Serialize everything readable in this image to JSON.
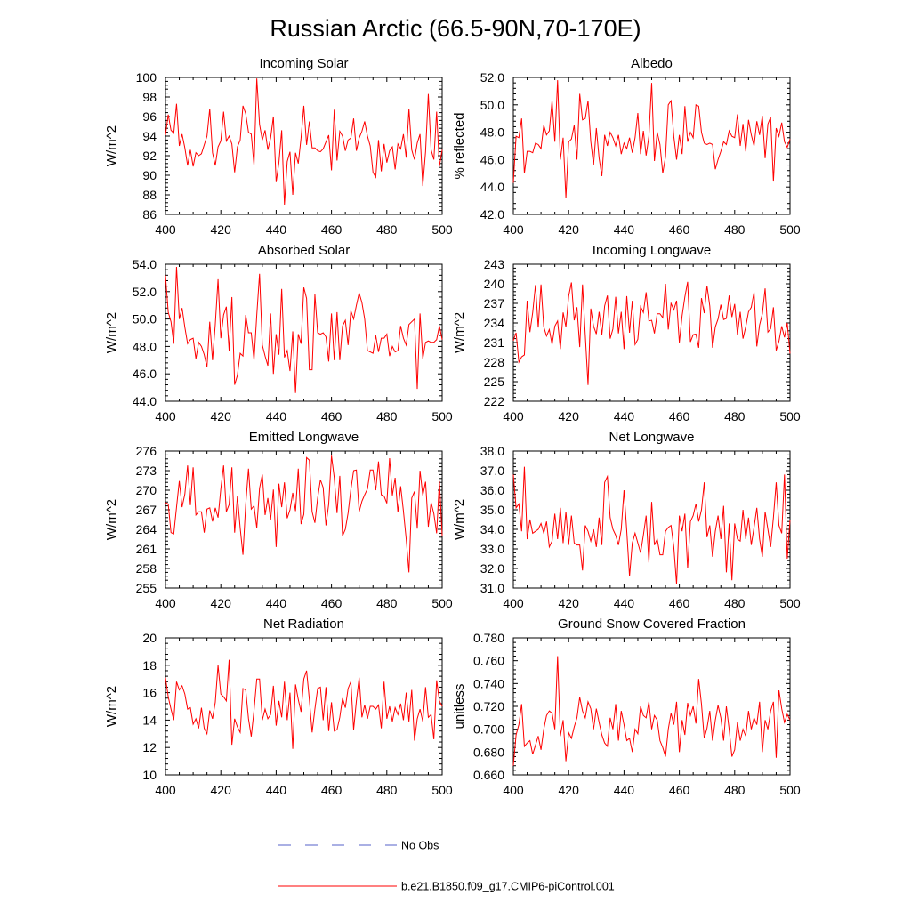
{
  "title": "Russian Arctic (66.5-90N,70-170E)",
  "legend": [
    {
      "label": "No Obs",
      "color": "#5560c8",
      "style": "dashed"
    },
    {
      "label": "b.e21.B1850.f09_g17.CMIP6-piControl.001",
      "color": "#ff0000",
      "style": "solid"
    }
  ],
  "chart_data": [
    {
      "type": "line",
      "title": "Incoming Solar",
      "ylabel": "W/m^2",
      "xlim": [
        400,
        500
      ],
      "ylim": [
        86,
        100
      ],
      "xticks": [
        "400",
        "420",
        "440",
        "460",
        "480",
        "500"
      ],
      "yticks": [
        "86",
        "88",
        "90",
        "92",
        "94",
        "96",
        "98",
        "100"
      ],
      "series": [
        {
          "color": "#ff0000",
          "x_start": 400,
          "x_step": 1,
          "values": [
            94.1,
            96.2,
            94.6,
            94.3,
            97.3,
            93.0,
            94.2,
            92.8,
            91.0,
            92.6,
            90.9,
            92.3,
            92.0,
            92.2,
            93.1,
            94.0,
            96.8,
            92.3,
            91.0,
            92.9,
            93.5,
            96.5,
            93.5,
            94.0,
            93.2,
            90.3,
            92.9,
            93.6,
            97.1,
            96.3,
            94.4,
            94.2,
            91.0,
            99.9,
            95.2,
            93.6,
            94.6,
            92.6,
            93.8,
            96.0,
            89.3,
            91.3,
            94.6,
            87.0,
            91.4,
            92.4,
            88.0,
            92.3,
            91.2,
            93.8,
            97.1,
            93.1,
            95.5,
            92.8,
            92.8,
            92.5,
            92.4,
            92.7,
            93.4,
            94.1,
            90.5,
            96.7,
            91.5,
            94.5,
            94.0,
            92.5,
            93.6,
            93.8,
            95.8,
            92.5,
            93.8,
            94.5,
            95.5,
            94.0,
            93.0,
            90.3,
            89.8,
            93.6,
            90.4,
            93.2,
            91.3,
            92.5,
            92.9,
            90.6,
            93.2,
            92.7,
            94.2,
            91.8,
            96.8,
            92.6,
            91.6,
            93.3,
            94.2,
            88.9,
            92.4,
            98.3,
            92.6,
            91.6,
            96.5,
            90.9,
            92.6
          ]
        }
      ]
    },
    {
      "type": "line",
      "title": "Albedo",
      "ylabel": "% reflected",
      "xlim": [
        400,
        500
      ],
      "ylim": [
        42,
        52
      ],
      "xticks": [
        "400",
        "420",
        "440",
        "460",
        "480",
        "500"
      ],
      "yticks": [
        "42.0",
        "44.0",
        "46.0",
        "48.0",
        "50.0",
        "52.0"
      ],
      "series": [
        {
          "color": "#ff0000",
          "x_start": 400,
          "x_step": 1,
          "values": [
            44.3,
            47.7,
            47.6,
            49.0,
            45.0,
            46.6,
            46.6,
            46.5,
            47.2,
            47.1,
            46.8,
            48.5,
            47.8,
            48.1,
            50.3,
            47.3,
            51.8,
            46.0,
            47.6,
            43.2,
            47.3,
            47.5,
            48.5,
            46.0,
            50.8,
            48.9,
            49.0,
            50.3,
            47.3,
            45.6,
            48.3,
            46.1,
            44.8,
            47.8,
            47.0,
            48.0,
            47.6,
            47.0,
            47.8,
            46.4,
            47.2,
            46.8,
            47.6,
            46.5,
            47.6,
            49.4,
            46.4,
            48.1,
            46.3,
            47.7,
            51.6,
            45.9,
            48.0,
            47.1,
            45.0,
            46.2,
            50.0,
            50.3,
            47.7,
            46.0,
            47.8,
            46.4,
            49.9,
            47.3,
            48.0,
            47.6,
            50.0,
            49.9,
            48.0,
            47.2,
            47.1,
            47.2,
            47.1,
            45.3,
            46.0,
            46.6,
            47.3,
            47.1,
            48.1,
            47.7,
            47.6,
            49.3,
            47.0,
            48.6,
            46.6,
            48.9,
            47.8,
            47.0,
            48.8,
            47.8,
            49.2,
            46.1,
            48.6,
            49.1,
            44.4,
            48.3,
            47.7,
            48.7,
            47.3,
            46.9,
            47.5
          ]
        }
      ]
    },
    {
      "type": "line",
      "title": "Absorbed Solar",
      "ylabel": "W/m^2",
      "xlim": [
        400,
        500
      ],
      "ylim": [
        44,
        54
      ],
      "xticks": [
        "400",
        "420",
        "440",
        "460",
        "480",
        "500"
      ],
      "yticks": [
        "44.0",
        "46.0",
        "48.0",
        "50.0",
        "52.0",
        "54.0"
      ],
      "series": [
        {
          "color": "#ff0000",
          "x_start": 400,
          "x_step": 1,
          "values": [
            53.2,
            50.5,
            49.8,
            48.2,
            53.8,
            50.0,
            50.8,
            49.4,
            48.2,
            48.5,
            48.6,
            47.1,
            48.3,
            48.0,
            47.4,
            46.5,
            49.8,
            47.0,
            49.6,
            52.9,
            48.6,
            50.3,
            50.9,
            47.7,
            51.6,
            45.2,
            45.9,
            47.5,
            47.3,
            50.3,
            49.0,
            49.0,
            47.0,
            50.3,
            53.3,
            48.1,
            47.3,
            46.6,
            50.4,
            46.0,
            48.9,
            47.4,
            52.2,
            47.2,
            47.7,
            46.2,
            49.1,
            44.6,
            48.9,
            48.2,
            52.3,
            51.5,
            46.3,
            46.3,
            51.8,
            49.0,
            48.9,
            49.0,
            48.7,
            46.9,
            50.4,
            47.0,
            50.5,
            47.0,
            49.5,
            49.9,
            48.1,
            50.6,
            50.0,
            51.0,
            51.9,
            51.2,
            50.0,
            47.7,
            47.6,
            47.5,
            48.8,
            47.6,
            48.6,
            48.6,
            48.9,
            47.3,
            48.0,
            47.6,
            47.7,
            49.5,
            48.6,
            48.1,
            49.6,
            49.8,
            50.0,
            44.9,
            50.4,
            47.1,
            48.3,
            48.4,
            48.3,
            48.3,
            48.5,
            49.5,
            48.5
          ]
        }
      ]
    },
    {
      "type": "line",
      "title": "Incoming Longwave",
      "ylabel": "W/m^2",
      "xlim": [
        400,
        500
      ],
      "ylim": [
        222,
        243
      ],
      "xticks": [
        "400",
        "420",
        "440",
        "460",
        "480",
        "500"
      ],
      "yticks": [
        "222",
        "225",
        "228",
        "231",
        "234",
        "237",
        "240",
        "243"
      ],
      "series": [
        {
          "color": "#ff0000",
          "x_start": 400,
          "x_step": 1,
          "values": [
            231.3,
            232.5,
            228.0,
            228.8,
            229.1,
            237.4,
            232.6,
            235.6,
            239.8,
            233.3,
            239.9,
            233.4,
            232.0,
            233.0,
            230.7,
            233.5,
            234.3,
            230.0,
            235.6,
            233.4,
            238.1,
            240.2,
            234.4,
            236.4,
            230.3,
            239.9,
            232.2,
            224.5,
            236.2,
            233.5,
            232.3,
            235.7,
            232.2,
            236.6,
            238.2,
            231.6,
            233.1,
            238.0,
            232.4,
            235.7,
            230.0,
            238.1,
            232.5,
            237.4,
            230.7,
            231.5,
            236.5,
            235.6,
            238.7,
            234.3,
            234.4,
            232.4,
            235.4,
            235.4,
            234.8,
            240.0,
            233.0,
            237.0,
            236.0,
            237.4,
            231.0,
            235.1,
            238.0,
            240.3,
            231.1,
            232.2,
            232.3,
            230.2,
            237.8,
            235.5,
            239.7,
            236.6,
            230.2,
            233.4,
            234.6,
            236.8,
            234.5,
            234.7,
            238.2,
            234.9,
            236.9,
            232.2,
            235.7,
            231.6,
            233.4,
            235.7,
            236.4,
            238.7,
            230.4,
            233.7,
            235.4,
            239.3,
            232.6,
            233.1,
            236.4,
            229.8,
            231.2,
            233.5,
            231.8,
            234.0,
            229.3
          ]
        }
      ]
    },
    {
      "type": "line",
      "title": "Emitted Longwave",
      "ylabel": "W/m^2",
      "xlim": [
        400,
        500
      ],
      "ylim": [
        255,
        276
      ],
      "xticks": [
        "400",
        "420",
        "440",
        "460",
        "480",
        "500"
      ],
      "yticks": [
        "255",
        "258",
        "261",
        "264",
        "267",
        "270",
        "273",
        "276"
      ],
      "series": [
        {
          "color": "#ff0000",
          "x_start": 400,
          "x_step": 1,
          "values": [
            268.1,
            267.9,
            263.5,
            263.3,
            267.4,
            271.4,
            267.4,
            269.4,
            273.8,
            267.7,
            273.5,
            266.2,
            266.7,
            266.7,
            263.5,
            267.1,
            267.3,
            265.2,
            267.3,
            265.8,
            270.2,
            273.8,
            266.7,
            267.8,
            273.5,
            263.5,
            269.1,
            264.2,
            260.1,
            267.8,
            273.3,
            267.1,
            267.6,
            264.2,
            270.3,
            272.4,
            266.2,
            268.8,
            265.5,
            270.1,
            261.3,
            271.0,
            267.4,
            271.2,
            265.7,
            267.0,
            269.6,
            266.8,
            273.3,
            264.8,
            266.3,
            275.0,
            274.6,
            266.7,
            265.0,
            268.8,
            271.6,
            270.4,
            264.6,
            267.9,
            275.3,
            271.9,
            266.5,
            272.2,
            263.0,
            264.0,
            266.5,
            270.1,
            273.0,
            273.1,
            266.7,
            268.3,
            269.3,
            270.2,
            273.1,
            273.1,
            270.0,
            274.4,
            269.3,
            269.1,
            268.0,
            274.9,
            269.2,
            271.9,
            266.6,
            270.6,
            266.8,
            262.5,
            257.4,
            268.8,
            269.8,
            264.1,
            273.0,
            269.2,
            271.3,
            264.4,
            268.1,
            266.4,
            263.4,
            271.4,
            263.0
          ]
        }
      ]
    },
    {
      "type": "line",
      "title": "Net Longwave",
      "ylabel": "W/m^2",
      "xlim": [
        400,
        500
      ],
      "ylim": [
        31,
        38
      ],
      "xticks": [
        "400",
        "420",
        "440",
        "460",
        "480",
        "500"
      ],
      "yticks": [
        "31.0",
        "32.0",
        "33.0",
        "34.0",
        "35.0",
        "36.0",
        "37.0",
        "38.0"
      ],
      "series": [
        {
          "color": "#ff0000",
          "x_start": 400,
          "x_step": 1,
          "values": [
            36.8,
            35.1,
            35.3,
            33.9,
            37.2,
            33.5,
            34.5,
            33.8,
            33.9,
            34.0,
            34.3,
            33.8,
            34.4,
            33.1,
            33.4,
            34.8,
            33.5,
            35.1,
            33.3,
            34.9,
            33.2,
            34.7,
            33.3,
            33.2,
            33.2,
            31.9,
            34.2,
            33.9,
            33.4,
            34.0,
            33.1,
            34.6,
            33.2,
            36.4,
            36.7,
            34.6,
            34.0,
            33.7,
            33.2,
            34.0,
            36.0,
            33.9,
            31.6,
            33.3,
            33.8,
            33.3,
            32.8,
            33.7,
            34.7,
            32.3,
            35.4,
            33.2,
            33.5,
            32.7,
            32.7,
            33.9,
            34.1,
            34.2,
            33.1,
            31.2,
            34.7,
            33.9,
            34.8,
            32.0,
            34.4,
            34.7,
            35.3,
            34.4,
            35.0,
            36.4,
            33.6,
            34.2,
            32.6,
            33.9,
            34.7,
            33.5,
            35.2,
            31.8,
            34.3,
            31.4,
            34.3,
            33.5,
            33.4,
            35.0,
            33.5,
            34.6,
            33.2,
            34.1,
            35.1,
            33.5,
            32.6,
            34.9,
            34.0,
            33.1,
            34.6,
            36.4,
            34.2,
            33.8,
            36.8,
            32.5,
            34.5
          ]
        }
      ]
    },
    {
      "type": "line",
      "title": "Net Radiation",
      "ylabel": "W/m^2",
      "xlim": [
        400,
        500
      ],
      "ylim": [
        10,
        20
      ],
      "xticks": [
        "400",
        "420",
        "440",
        "460",
        "480",
        "500"
      ],
      "yticks": [
        "10",
        "12",
        "14",
        "16",
        "18",
        "20"
      ],
      "series": [
        {
          "color": "#ff0000",
          "x_start": 400,
          "x_step": 1,
          "values": [
            17.1,
            15.7,
            14.8,
            14.0,
            16.8,
            16.2,
            16.5,
            15.9,
            14.8,
            14.9,
            13.7,
            14.1,
            13.4,
            14.9,
            13.4,
            13.0,
            14.7,
            14.1,
            15.3,
            18.0,
            15.9,
            15.7,
            15.4,
            18.4,
            12.2,
            14.1,
            13.5,
            13.1,
            16.3,
            16.2,
            14.1,
            12.8,
            14.7,
            17.0,
            17.0,
            14.0,
            14.8,
            14.1,
            14.4,
            16.5,
            13.6,
            15.4,
            14.2,
            16.8,
            14.0,
            16.0,
            11.9,
            16.6,
            15.5,
            14.6,
            17.0,
            17.6,
            15.5,
            13.1,
            14.8,
            16.3,
            16.4,
            14.0,
            16.4,
            13.2,
            15.3,
            13.2,
            13.3,
            14.2,
            15.6,
            14.9,
            16.3,
            16.8,
            13.3,
            15.4,
            17.1,
            14.2,
            15.1,
            14.1,
            15.0,
            15.0,
            14.8,
            15.1,
            13.4,
            16.8,
            14.1,
            15.0,
            13.9,
            14.9,
            14.4,
            15.2,
            14.0,
            16.0,
            13.9,
            16.2,
            12.5,
            14.1,
            14.8,
            13.9,
            16.4,
            14.2,
            14.4,
            12.6,
            16.9,
            15.4,
            15.0
          ]
        }
      ]
    },
    {
      "type": "line",
      "title": "Ground Snow Covered Fraction",
      "ylabel": "unitless",
      "xlim": [
        400,
        500
      ],
      "ylim": [
        0.66,
        0.78
      ],
      "xticks": [
        "400",
        "420",
        "440",
        "460",
        "480",
        "500"
      ],
      "yticks": [
        "0.660",
        "0.680",
        "0.700",
        "0.720",
        "0.740",
        "0.760",
        "0.780"
      ],
      "series": [
        {
          "color": "#ff0000",
          "x_start": 400,
          "x_step": 1,
          "values": [
            0.668,
            0.695,
            0.704,
            0.722,
            0.685,
            0.688,
            0.69,
            0.678,
            0.686,
            0.694,
            0.682,
            0.7,
            0.712,
            0.716,
            0.714,
            0.7,
            0.764,
            0.694,
            0.708,
            0.672,
            0.697,
            0.692,
            0.702,
            0.71,
            0.728,
            0.716,
            0.71,
            0.724,
            0.718,
            0.7,
            0.718,
            0.706,
            0.695,
            0.688,
            0.685,
            0.71,
            0.7,
            0.722,
            0.69,
            0.716,
            0.704,
            0.69,
            0.692,
            0.68,
            0.7,
            0.696,
            0.72,
            0.712,
            0.71,
            0.724,
            0.7,
            0.712,
            0.708,
            0.69,
            0.684,
            0.676,
            0.7,
            0.714,
            0.704,
            0.724,
            0.68,
            0.708,
            0.695,
            0.723,
            0.712,
            0.72,
            0.705,
            0.744,
            0.722,
            0.692,
            0.701,
            0.716,
            0.69,
            0.708,
            0.721,
            0.71,
            0.69,
            0.72,
            0.7,
            0.676,
            0.682,
            0.706,
            0.69,
            0.7,
            0.694,
            0.716,
            0.7,
            0.71,
            0.704,
            0.724,
            0.68,
            0.708,
            0.7,
            0.716,
            0.724,
            0.675,
            0.734,
            0.718,
            0.706,
            0.713,
            0.708
          ]
        }
      ]
    }
  ]
}
